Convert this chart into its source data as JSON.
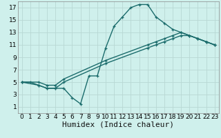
{
  "bg_color": "#cff0ec",
  "grid_color": "#b8d8d4",
  "line_color": "#1a6b6b",
  "xlabel": "Humidex (Indice chaleur)",
  "xlabel_fontsize": 8,
  "xlim": [
    -0.5,
    23.5
  ],
  "ylim": [
    0,
    18
  ],
  "xticks": [
    0,
    1,
    2,
    3,
    4,
    5,
    6,
    7,
    8,
    9,
    10,
    11,
    12,
    13,
    14,
    15,
    16,
    17,
    18,
    19,
    20,
    21,
    22,
    23
  ],
  "yticks": [
    1,
    3,
    5,
    7,
    9,
    11,
    13,
    15,
    17
  ],
  "curve1_x": [
    0,
    1,
    2,
    3,
    4,
    5,
    6,
    7,
    8,
    9,
    10,
    11,
    12,
    13,
    14,
    15,
    16,
    17,
    18,
    19,
    20,
    21,
    22,
    23
  ],
  "curve1_y": [
    5,
    5,
    4.5,
    4,
    4,
    4,
    2.5,
    1.5,
    6,
    6,
    10.5,
    14,
    15.5,
    17,
    17.5,
    17.5,
    15.5,
    14.5,
    13.5,
    13,
    12.5,
    12,
    11.5,
    11
  ],
  "curve2_x": [
    0,
    2,
    3,
    4,
    5,
    10,
    15,
    16,
    17,
    18,
    19,
    20,
    21,
    22,
    23
  ],
  "curve2_y": [
    5,
    4.5,
    4,
    4,
    5,
    8,
    10.5,
    11,
    11.5,
    12,
    12.5,
    12.5,
    12,
    11.5,
    11
  ],
  "curve3_x": [
    0,
    2,
    3,
    4,
    5,
    10,
    15,
    16,
    17,
    18,
    19,
    20,
    21,
    22,
    23
  ],
  "curve3_y": [
    5,
    5,
    4.5,
    4.5,
    5.5,
    8.5,
    11,
    11.5,
    12,
    12.5,
    13,
    12.5,
    12,
    11.5,
    11
  ],
  "marker": "+",
  "markersize": 3,
  "linewidth": 1.0,
  "tick_fontsize": 6.5
}
